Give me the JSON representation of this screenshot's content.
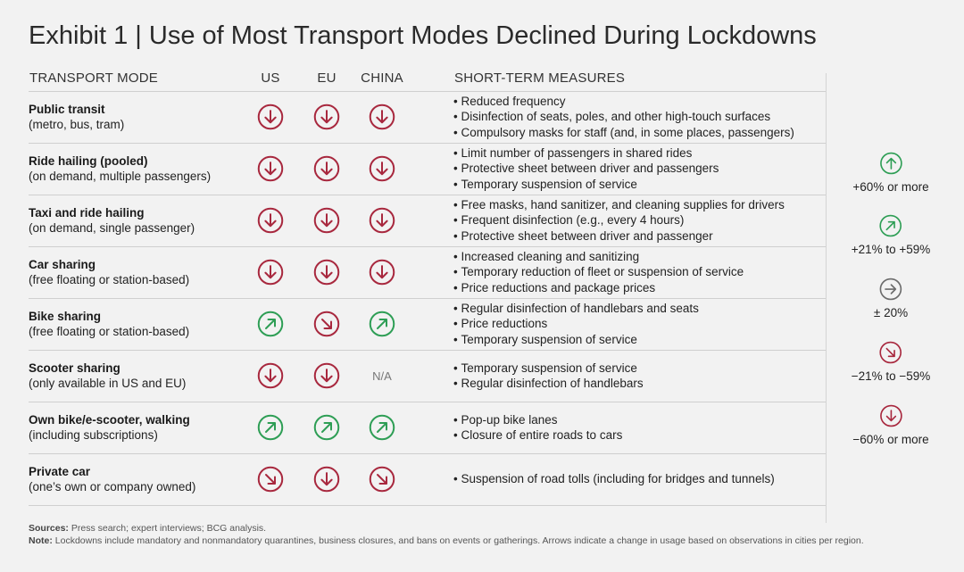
{
  "title": "Exhibit 1 | Use of Most Transport Modes Declined During Lockdowns",
  "headers": {
    "mode": "TRANSPORT MODE",
    "us": "US",
    "eu": "EU",
    "china": "CHINA",
    "measures": "SHORT-TERM MEASURES"
  },
  "colors": {
    "decline": "#a8283e",
    "increase": "#2e9e55",
    "neutral": "#6b6b6b"
  },
  "rows": [
    {
      "name": "Public transit",
      "sub": "(metro, bus, tram)",
      "us": "down",
      "eu": "down",
      "china": "down",
      "measures": [
        "Reduced frequency",
        "Disinfection of seats, poles, and other high-touch surfaces",
        "Compulsory masks for staff (and, in some places, passengers)"
      ]
    },
    {
      "name": "Ride hailing (pooled)",
      "sub": "(on demand, multiple passengers)",
      "us": "down",
      "eu": "down",
      "china": "down",
      "measures": [
        "Limit number of passengers in shared rides",
        "Protective sheet between driver and passengers",
        "Temporary suspension of service"
      ]
    },
    {
      "name": "Taxi and ride hailing",
      "sub": "(on demand, single passenger)",
      "us": "down",
      "eu": "down",
      "china": "down",
      "measures": [
        "Free masks, hand sanitizer, and cleaning supplies for drivers",
        "Frequent disinfection (e.g., every 4 hours)",
        "Protective sheet between driver and passenger"
      ]
    },
    {
      "name": "Car sharing",
      "sub": "(free floating or station-based)",
      "us": "down",
      "eu": "down",
      "china": "down",
      "measures": [
        "Increased cleaning and sanitizing",
        "Temporary reduction of fleet or suspension of service",
        "Price reductions and package prices"
      ]
    },
    {
      "name": "Bike sharing",
      "sub": "(free floating or station-based)",
      "us": "up-right",
      "eu": "down-right",
      "china": "up-right",
      "measures": [
        "Regular disinfection of handlebars and seats",
        "Price reductions",
        "Temporary suspension of service"
      ]
    },
    {
      "name": "Scooter sharing",
      "sub": "(only available in US and EU)",
      "us": "down",
      "eu": "down",
      "china": "na",
      "na_label": "N/A",
      "measures": [
        "Temporary suspension of service",
        "Regular disinfection of handlebars"
      ]
    },
    {
      "name": "Own bike/e-scooter, walking",
      "sub": "(including subscriptions)",
      "us": "up-right",
      "eu": "up-right",
      "china": "up-right",
      "measures": [
        "Pop-up bike lanes",
        "Closure of entire roads to cars"
      ]
    },
    {
      "name": "Private car",
      "sub": "(one’s own or company owned)",
      "us": "down-right",
      "eu": "down",
      "china": "down-right",
      "measures": [
        "Suspension of road tolls (including for bridges and tunnels)"
      ]
    }
  ],
  "legend": [
    {
      "icon": "up",
      "label": "+60% or more"
    },
    {
      "icon": "up-right",
      "label": "+21% to +59%"
    },
    {
      "icon": "right",
      "label": "± 20%"
    },
    {
      "icon": "down-right",
      "label": "−21% to −59%"
    },
    {
      "icon": "down",
      "label": "−60% or more"
    }
  ],
  "footer": {
    "sources_label": "Sources:",
    "sources_text": " Press search; expert interviews; BCG analysis.",
    "note_label": "Note:",
    "note_text": " Lockdowns include mandatory and nonmandatory quarantines, business closures, and bans on events or gatherings. Arrows indicate a change in usage based on observations in cities per region."
  }
}
